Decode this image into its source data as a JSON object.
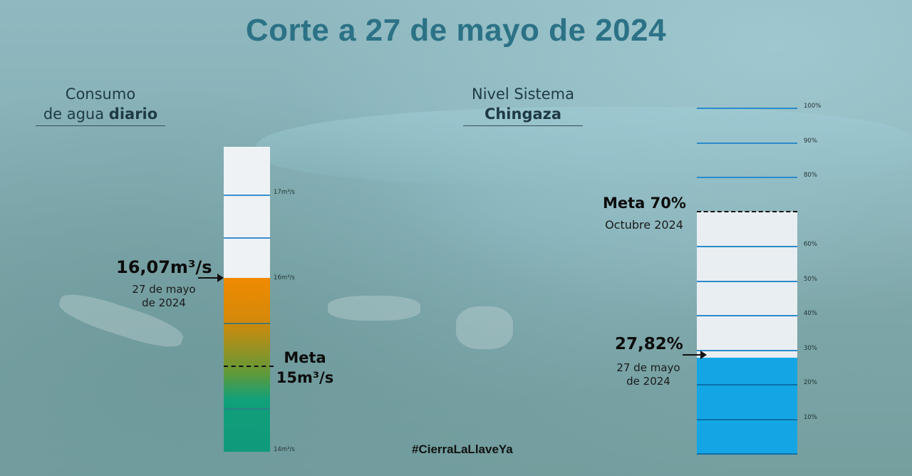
{
  "title": "Corte a 27 de mayo de 2024",
  "hashtag": "#CierraLaLlaveYa",
  "left_panel": {
    "heading_line1": "Consumo",
    "heading_line2_a": "de agua ",
    "heading_line2_b": "diario",
    "scale_labels": [
      "17m³/s",
      "16m³/s",
      "14m³/s"
    ],
    "current_value": "16,07m³/s",
    "current_date_line1": "27 de mayo",
    "current_date_line2": "de 2024",
    "goal_label_line1": "Meta",
    "goal_label_line2": "15m³/s",
    "current_fraction": 0.57,
    "goal_fraction": 0.28
  },
  "right_panel": {
    "heading_line1": "Nivel Sistema",
    "heading_line2": "Chingaza",
    "scale_labels": [
      "100%",
      "90%",
      "80%",
      "60%",
      "50%",
      "40%",
      "30%",
      "20%",
      "10%"
    ],
    "current_value": "27,82%",
    "current_date_line1": "27 de mayo",
    "current_date_line2": "de 2024",
    "goal_label_line1": "Meta 70%",
    "goal_label_line2": "Octubre 2024",
    "current_fraction": 0.2782,
    "goal_fraction": 0.7
  },
  "colors": {
    "title": "#2c7286",
    "orange": "#f08a00",
    "green": "#0f9a7b",
    "blue_fill": "#14a6e4",
    "tube_empty": "#e9eef2",
    "tick_blue": "#2c8bc9"
  }
}
